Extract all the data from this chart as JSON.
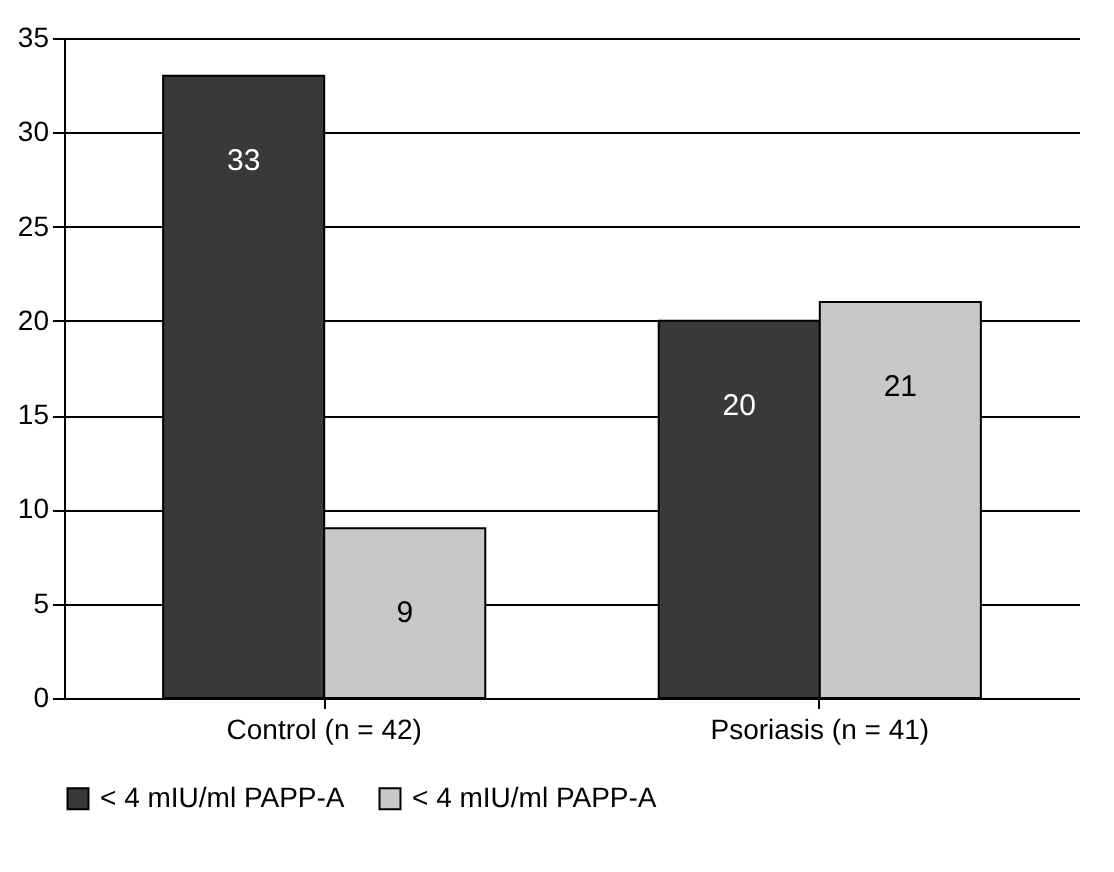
{
  "chart_data": {
    "type": "bar",
    "categories": [
      "Control (n = 42)",
      "Psoriasis (n = 41)"
    ],
    "series": [
      {
        "name": "< 4 mIU/ml PAPP-A",
        "color": "#393939",
        "values": [
          33,
          20
        ]
      },
      {
        "name": "< 4 mIU/ml PAPP-A",
        "color": "#c8c8c8",
        "values": [
          9,
          21
        ]
      }
    ],
    "ylim": [
      0,
      35
    ],
    "yticks": [
      0,
      5,
      10,
      15,
      20,
      25,
      30,
      35
    ],
    "grid": "y",
    "legend": "bottom",
    "data_labels": true
  }
}
